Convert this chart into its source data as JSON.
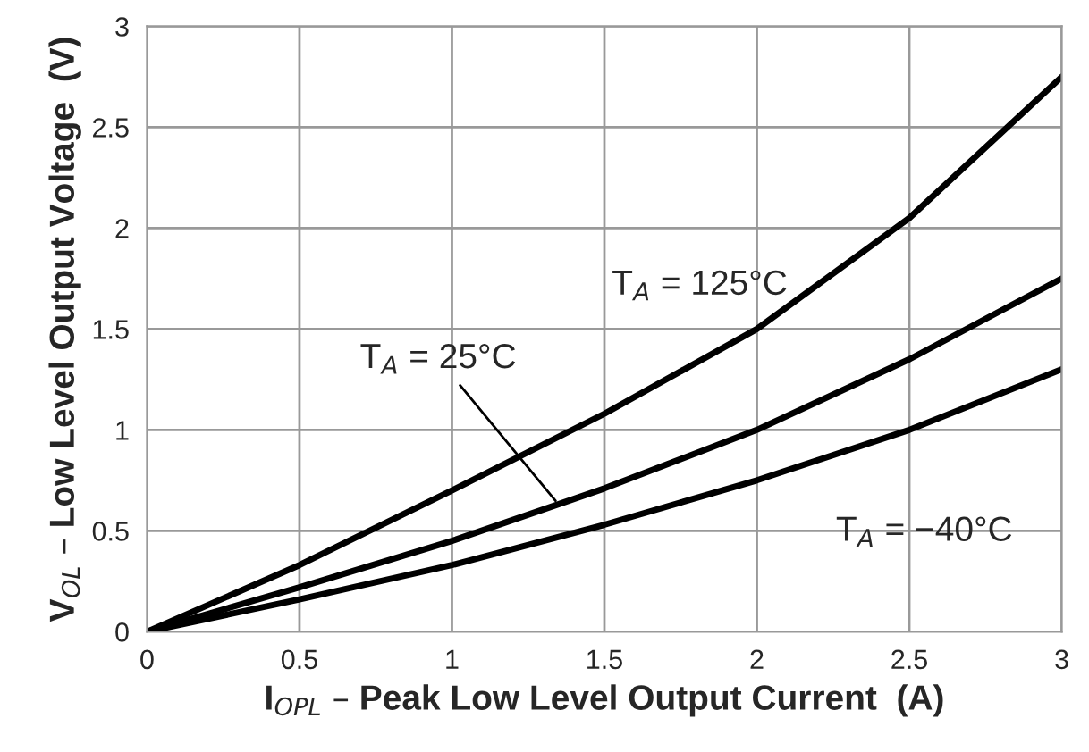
{
  "chart_data": {
    "type": "line",
    "xlabel": "I$_{OPL}$ – Peak Low Level Output Current  (A)",
    "ylabel": "V$_{OL}$ – Low Level Output Voltage  (V)",
    "x": [
      0,
      0.5,
      1,
      1.5,
      2,
      2.5,
      3
    ],
    "series": [
      {
        "color": "#000000",
        "values": [
          0,
          0.33,
          0.7,
          1.08,
          1.5,
          2.05,
          2.75
        ]
      },
      {
        "color": "#000000",
        "values": [
          0,
          0.22,
          0.45,
          0.71,
          1.0,
          1.35,
          1.75
        ]
      },
      {
        "color": "#000000",
        "values": [
          0,
          0.16,
          0.33,
          0.53,
          0.75,
          1.0,
          1.3
        ]
      }
    ],
    "annotations": [
      {
        "text": "T$_{A}$ = 125°C",
        "x": 1.85,
        "y": 1.4
      },
      {
        "text": "T$_{A}$ = 25°C",
        "x": 1.35,
        "y": 0.63
      },
      {
        "text": "T$_{A}$ = −40°C",
        "x": 2.3,
        "y": 0.88
      }
    ],
    "xlim": [
      0,
      3
    ],
    "ylim": [
      0,
      3
    ],
    "xticks": [
      0,
      0.5,
      1,
      1.5,
      2,
      2.5,
      3
    ],
    "yticks": [
      0,
      0.5,
      1,
      1.5,
      2,
      2.5,
      3
    ],
    "grid": true,
    "legend": false,
    "marker": "none",
    "line_style": "solid"
  }
}
